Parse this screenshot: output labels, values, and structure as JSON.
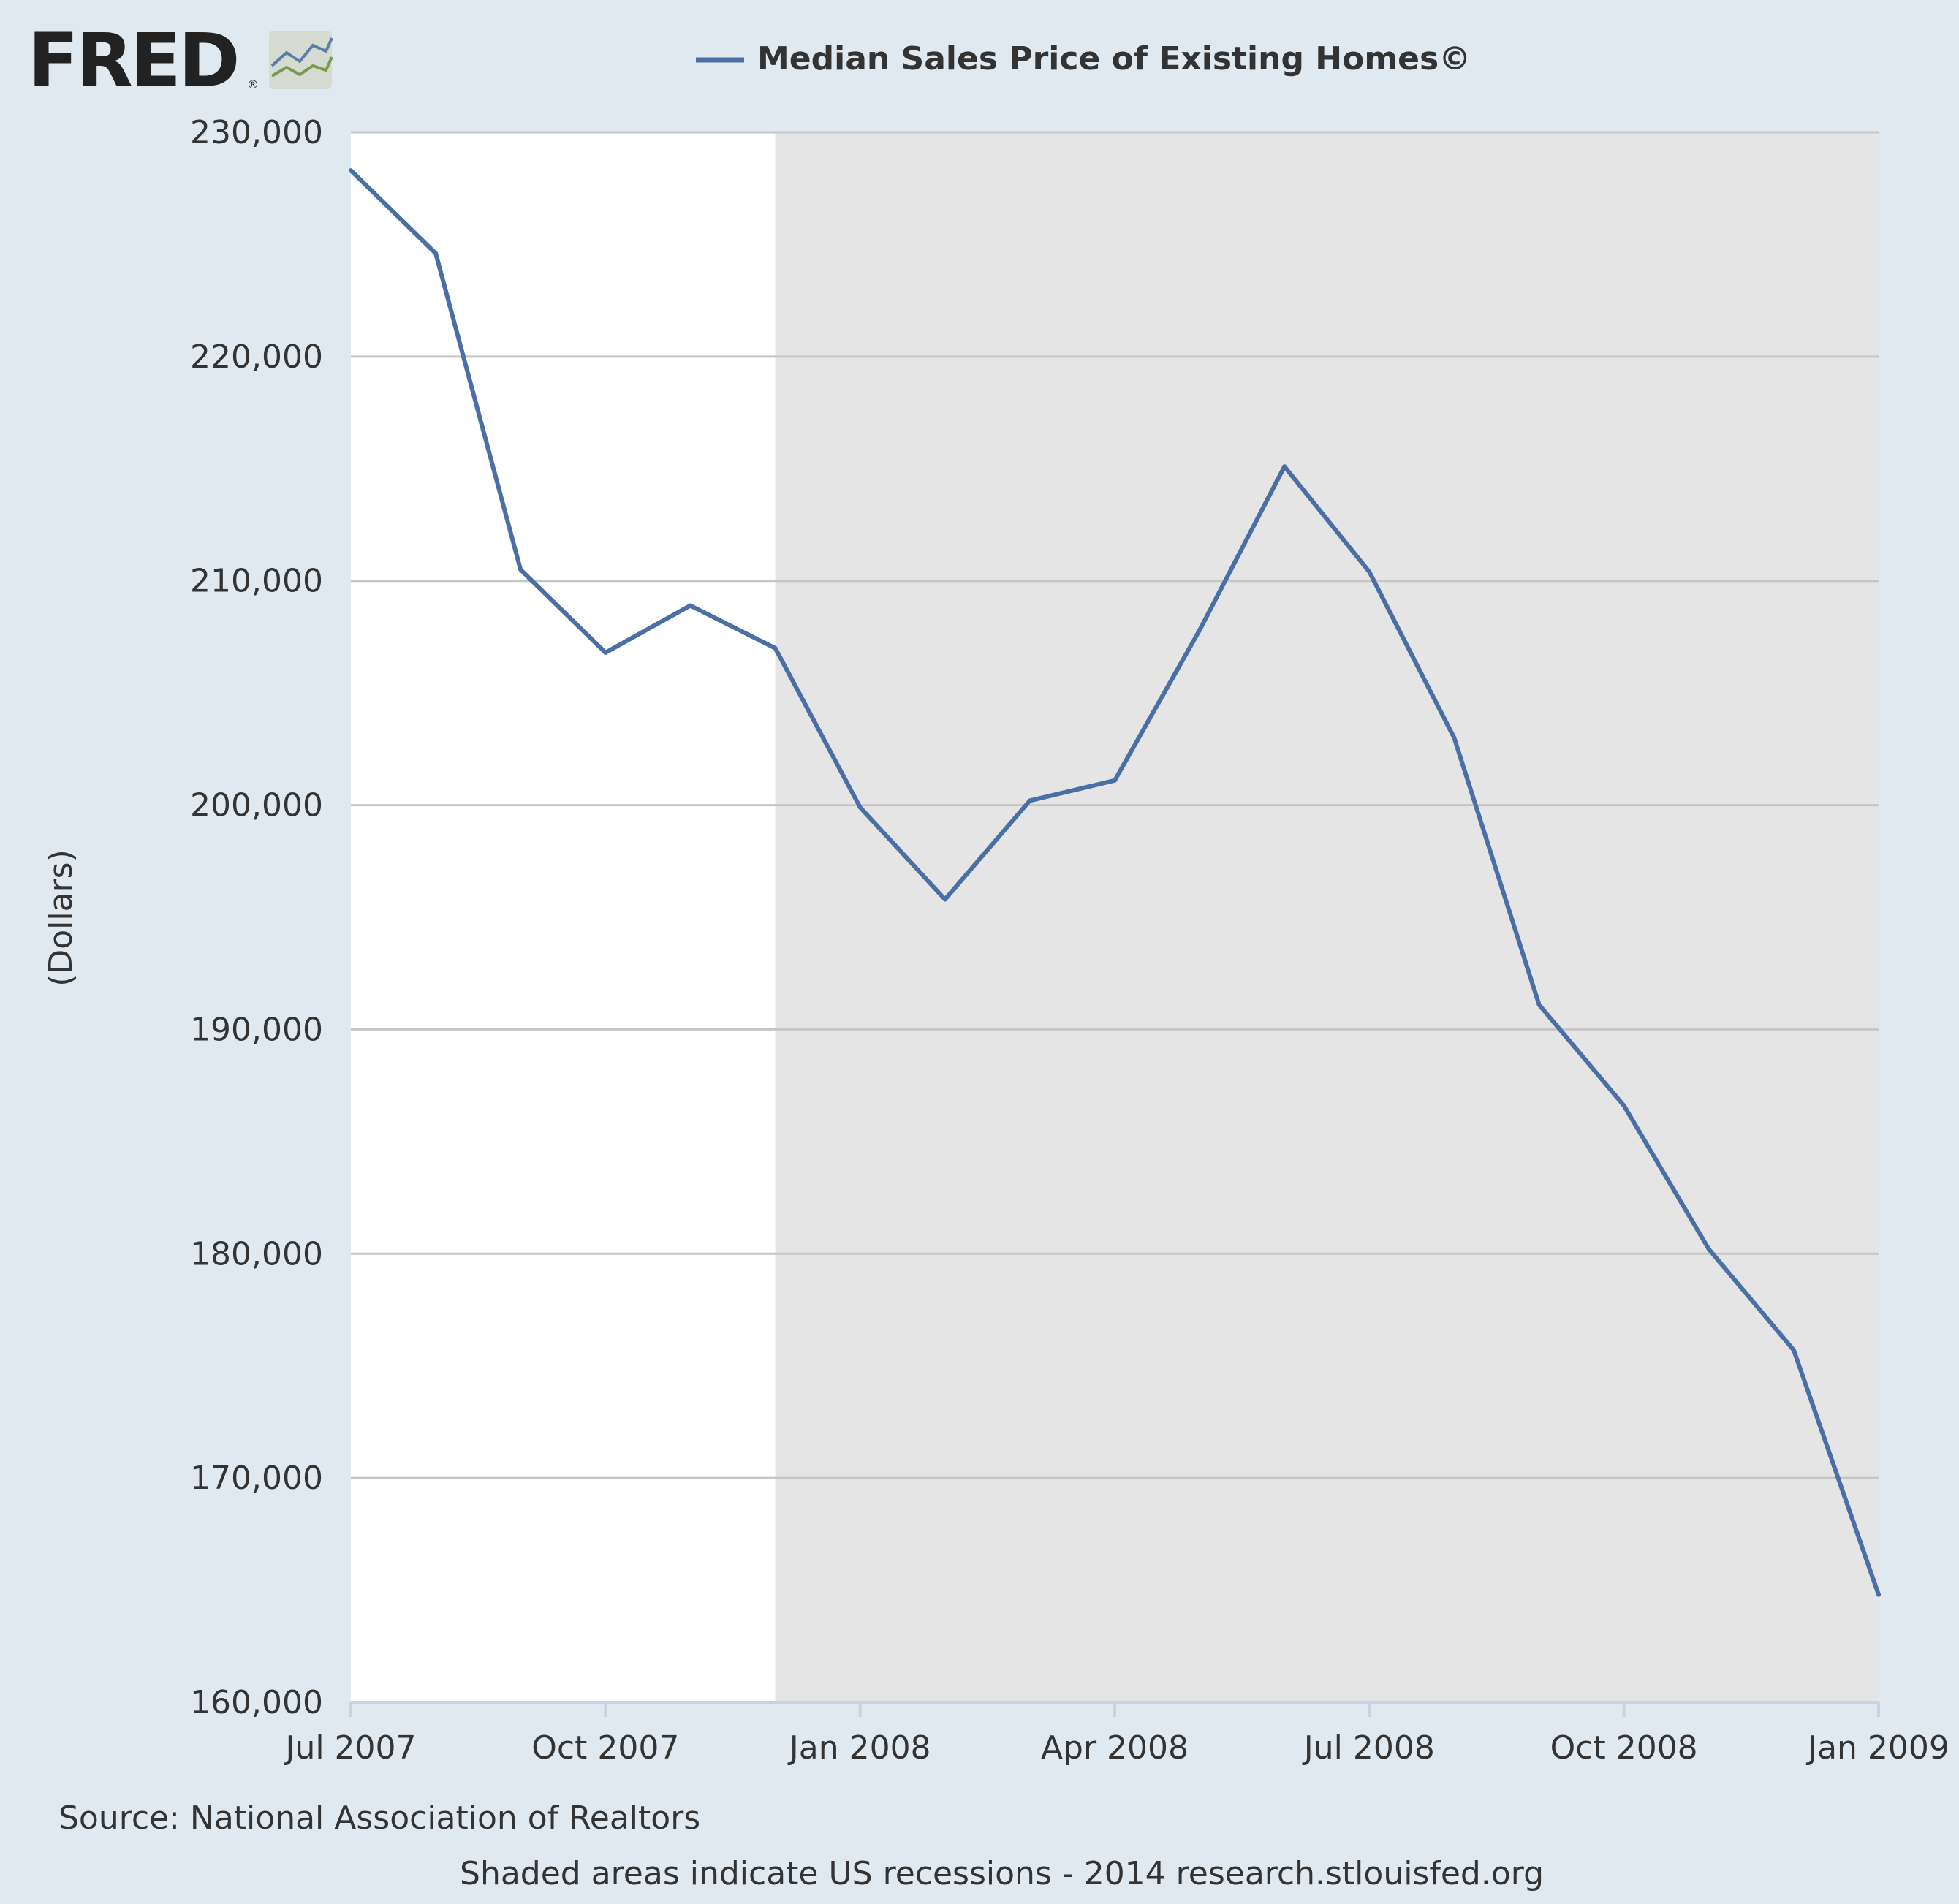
{
  "logo": {
    "text": "FRED",
    "registered_mark": "®",
    "icon": "line-graph-icon"
  },
  "colors": {
    "background": "#e1e9f0",
    "plot_background": "#ffffff",
    "recession_shade": "#e5e5e5",
    "series_line": "#4a6fa5",
    "grid": "#c6c6c6",
    "axis": "#c8d3e1",
    "text": "#333333"
  },
  "chart_data": {
    "type": "line",
    "legend": {
      "position": "top-center"
    },
    "ylabel": "(Dollars)",
    "ylim": [
      160000,
      230000
    ],
    "yticks": [
      160000,
      170000,
      180000,
      190000,
      200000,
      210000,
      220000,
      230000
    ],
    "ytick_labels": [
      "160,000",
      "170,000",
      "180,000",
      "190,000",
      "200,000",
      "210,000",
      "220,000",
      "230,000"
    ],
    "xlim": [
      "2007-07",
      "2009-01"
    ],
    "xticks": [
      "2007-07",
      "2007-10",
      "2008-01",
      "2008-04",
      "2008-07",
      "2008-10",
      "2009-01"
    ],
    "xtick_labels": [
      "Jul 2007",
      "Oct 2007",
      "Jan 2008",
      "Apr 2008",
      "Jul 2008",
      "Oct 2008",
      "Jan 2009"
    ],
    "grid": true,
    "recession_periods": [
      {
        "start": "2007-12",
        "end": "2009-01"
      }
    ],
    "series": [
      {
        "name": "Median Sales Price of Existing Homes©",
        "x": [
          "2007-07",
          "2007-08",
          "2007-09",
          "2007-10",
          "2007-11",
          "2007-12",
          "2008-01",
          "2008-02",
          "2008-03",
          "2008-04",
          "2008-05",
          "2008-06",
          "2008-07",
          "2008-08",
          "2008-09",
          "2008-10",
          "2008-11",
          "2008-12",
          "2009-01"
        ],
        "values": [
          228300,
          224600,
          210500,
          206800,
          208900,
          207000,
          199900,
          195800,
          200200,
          201100,
          207800,
          215100,
          210400,
          203000,
          191100,
          186600,
          180200,
          175700,
          164800
        ]
      }
    ]
  },
  "footer": {
    "source": "Source: National Association of Realtors",
    "note": "Shaded areas indicate US recessions - 2014 research.stlouisfed.org"
  }
}
